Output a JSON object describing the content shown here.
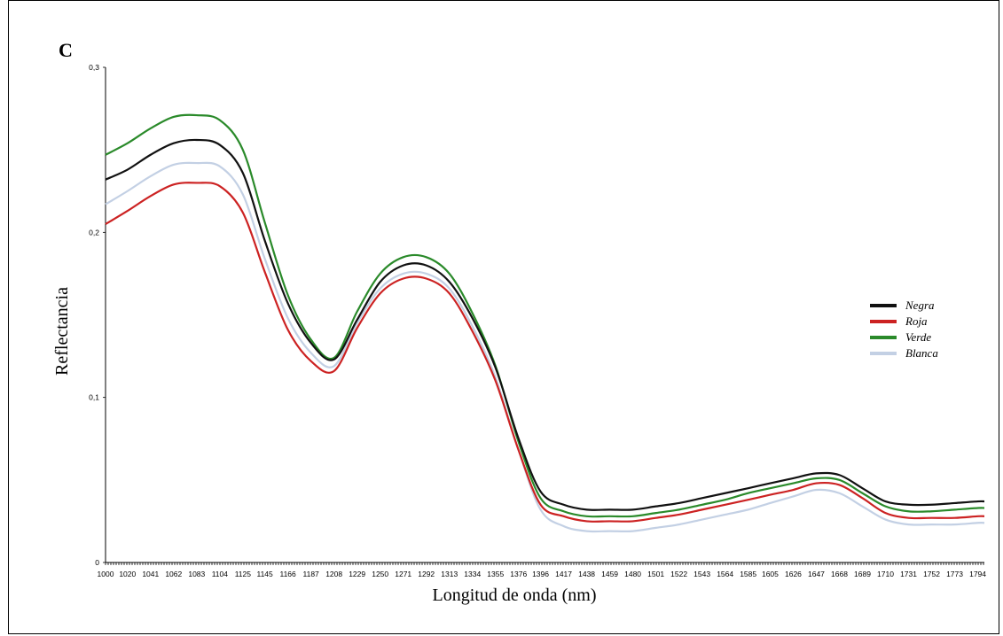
{
  "panel_label": "C",
  "chart_data": {
    "type": "line",
    "title": "",
    "xlabel": "Longitud de onda (nm)",
    "ylabel": "Reflectancia",
    "xlim": [
      1000,
      1800
    ],
    "ylim": [
      0,
      0.3
    ],
    "yticks": [
      "0",
      "0,1",
      "0,2",
      "0,3"
    ],
    "ytick_values": [
      0,
      0.1,
      0.2,
      0.3
    ],
    "xticks": [
      "1000",
      "1020",
      "1041",
      "1062",
      "1083",
      "1104",
      "1125",
      "1145",
      "1166",
      "1187",
      "1208",
      "1229",
      "1250",
      "1271",
      "1292",
      "1313",
      "1334",
      "1355",
      "1376",
      "1396",
      "1417",
      "1438",
      "1459",
      "1480",
      "1501",
      "1522",
      "1543",
      "1564",
      "1585",
      "1605",
      "1626",
      "1647",
      "1668",
      "1689",
      "1710",
      "1731",
      "1752",
      "1773",
      "1794"
    ],
    "grid": false,
    "legend_position": "right",
    "x": [
      1000,
      1020,
      1041,
      1062,
      1083,
      1104,
      1125,
      1145,
      1166,
      1187,
      1208,
      1229,
      1250,
      1271,
      1292,
      1313,
      1334,
      1355,
      1376,
      1396,
      1417,
      1438,
      1459,
      1480,
      1501,
      1522,
      1543,
      1564,
      1585,
      1605,
      1626,
      1647,
      1668,
      1689,
      1710,
      1731,
      1752,
      1773,
      1794,
      1800
    ],
    "series": [
      {
        "name": "Negra",
        "color": "#111111",
        "values": [
          0.232,
          0.238,
          0.247,
          0.254,
          0.256,
          0.253,
          0.236,
          0.195,
          0.157,
          0.133,
          0.123,
          0.147,
          0.17,
          0.18,
          0.18,
          0.17,
          0.148,
          0.118,
          0.075,
          0.043,
          0.035,
          0.032,
          0.032,
          0.032,
          0.034,
          0.036,
          0.039,
          0.042,
          0.045,
          0.048,
          0.051,
          0.054,
          0.053,
          0.045,
          0.037,
          0.035,
          0.035,
          0.036,
          0.037,
          0.037
        ]
      },
      {
        "name": "Roja",
        "color": "#cc2222",
        "values": [
          0.205,
          0.213,
          0.222,
          0.229,
          0.23,
          0.228,
          0.212,
          0.176,
          0.141,
          0.122,
          0.116,
          0.142,
          0.163,
          0.172,
          0.172,
          0.163,
          0.14,
          0.11,
          0.068,
          0.035,
          0.028,
          0.025,
          0.025,
          0.025,
          0.027,
          0.029,
          0.032,
          0.035,
          0.038,
          0.041,
          0.044,
          0.048,
          0.047,
          0.039,
          0.03,
          0.027,
          0.027,
          0.027,
          0.028,
          0.028
        ]
      },
      {
        "name": "Verde",
        "color": "#2a8a2a",
        "values": [
          0.247,
          0.254,
          0.263,
          0.27,
          0.271,
          0.268,
          0.25,
          0.206,
          0.162,
          0.135,
          0.124,
          0.152,
          0.175,
          0.185,
          0.185,
          0.175,
          0.151,
          0.119,
          0.073,
          0.039,
          0.031,
          0.028,
          0.028,
          0.028,
          0.03,
          0.032,
          0.035,
          0.038,
          0.042,
          0.045,
          0.048,
          0.051,
          0.05,
          0.042,
          0.034,
          0.031,
          0.031,
          0.032,
          0.033,
          0.033
        ]
      },
      {
        "name": "Blanca",
        "color": "#c3d0e4",
        "values": [
          0.217,
          0.225,
          0.234,
          0.241,
          0.242,
          0.24,
          0.223,
          0.184,
          0.148,
          0.127,
          0.119,
          0.145,
          0.166,
          0.175,
          0.175,
          0.166,
          0.143,
          0.112,
          0.068,
          0.032,
          0.022,
          0.019,
          0.019,
          0.019,
          0.021,
          0.023,
          0.026,
          0.029,
          0.032,
          0.036,
          0.04,
          0.044,
          0.042,
          0.034,
          0.026,
          0.023,
          0.023,
          0.023,
          0.024,
          0.024
        ]
      }
    ]
  }
}
